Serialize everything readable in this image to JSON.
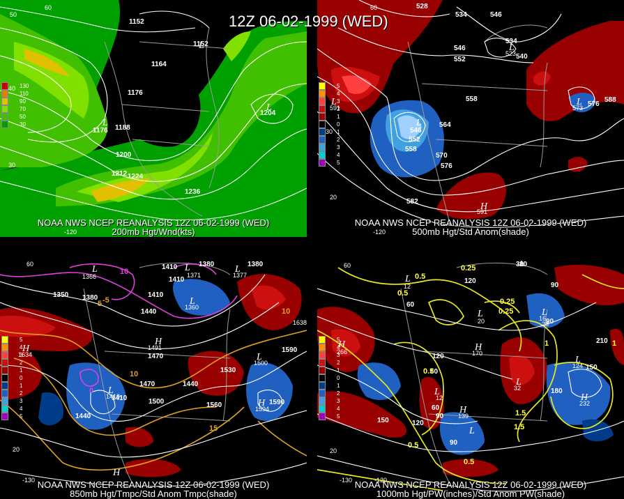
{
  "title": "12Z 06-02-1999 (WED)",
  "panels": [
    {
      "caption_line1": "NOAA NWS NCEP REANALYSIS 12Z 06-02-1999 (WED)",
      "caption_line2": "200mb Hgt/Wnd(kts)",
      "legend": [
        "130",
        "110",
        "90",
        "70",
        "50",
        "30"
      ],
      "legend_colors": [
        "#cc0000",
        "#e08000",
        "#e0c000",
        "#80e000",
        "#40c000",
        "#00a000"
      ],
      "contour_labels": [
        "1152",
        "1152",
        "1164",
        "1176",
        "1188",
        "1176",
        "1200",
        "1212",
        "1224",
        "1236",
        "1204"
      ],
      "extrema": [
        "L",
        "L",
        "L"
      ],
      "lat_lon": [
        "50",
        "60",
        "40",
        "30",
        "-120"
      ]
    },
    {
      "caption_line1": "NOAA NWS NCEP REANALYSIS 12Z 06-02-1999 (WED)",
      "caption_line2": "500mb Hgt/Std Anom(shade)",
      "legend": [
        "5",
        "4",
        "3",
        "2",
        "1",
        "0",
        "1",
        "2",
        "3",
        "4",
        "5"
      ],
      "legend_colors": [
        "#ffff00",
        "#ff9000",
        "#ff4040",
        "#cc1010",
        "#990000",
        "#000000",
        "#003c8a",
        "#2060c0",
        "#40a0e0",
        "#00d0d0",
        "#a000c0"
      ],
      "contour_labels": [
        "528",
        "534",
        "546",
        "534",
        "540",
        "546",
        "552",
        "558",
        "564",
        "570",
        "576",
        "582",
        "588",
        "576",
        "546",
        "552",
        "558"
      ],
      "extrema": [
        "L",
        "L",
        "L",
        "H",
        "L"
      ],
      "extrema_values": [
        "523",
        "573",
        "591",
        "594"
      ],
      "lat_lon": [
        "60",
        "30",
        "20",
        "-120"
      ]
    },
    {
      "caption_line1": "NOAA NWS NCEP REANALYSIS 12Z 06-02-1999 (WED)",
      "caption_line2": "850mb Hgt/Tmpc/Std Anom Tmpc(shade)",
      "legend": [
        "5",
        "4",
        "3",
        "2",
        "1",
        "0",
        "1",
        "2",
        "3",
        "4",
        "5"
      ],
      "legend_colors": [
        "#ffff00",
        "#ff9000",
        "#ff4040",
        "#cc1010",
        "#990000",
        "#000000",
        "#003c8a",
        "#2060c0",
        "#40a0e0",
        "#00d0d0",
        "#a000c0"
      ],
      "contour_labels": [
        "1380",
        "1380",
        "1410",
        "1410",
        "1350",
        "1380",
        "1440",
        "1410",
        "1470",
        "1470",
        "1500",
        "1530",
        "1560",
        "1590",
        "1590",
        "1440",
        "1410",
        "1440"
      ],
      "temp_labels": [
        "10",
        "-5",
        "5",
        "0",
        "10",
        "15",
        "10"
      ],
      "extrema": [
        "L",
        "L",
        "L",
        "L",
        "H",
        "H",
        "L",
        "L",
        "H",
        "H"
      ],
      "extrema_values": [
        "1366",
        "1371",
        "1360",
        "1377",
        "1634",
        "1491",
        "1419",
        "1500",
        "1594",
        "1638"
      ],
      "lat_lon": [
        "60",
        "20",
        "-130"
      ]
    },
    {
      "caption_line1": "NOAA NWS NCEP REANALYSIS 12Z 06-02-1999 (WED)",
      "caption_line2": "1000mb Hgt/PW(inches)/Std Anom PW(shade)",
      "legend": [
        "5",
        "4",
        "3",
        "2",
        "1",
        "0",
        "1",
        "2",
        "3",
        "4",
        "5"
      ],
      "legend_colors": [
        "#ffff00",
        "#ff9000",
        "#ff4040",
        "#cc1010",
        "#990000",
        "#000000",
        "#003c8a",
        "#2060c0",
        "#40a0e0",
        "#00d0d0",
        "#a000c0"
      ],
      "contour_labels": [
        "30",
        "90",
        "120",
        "60",
        "0.5",
        "0.25",
        "0.25",
        "0.5",
        "0.25",
        "30",
        "60",
        "120",
        "90",
        "150",
        "180",
        "210",
        "120",
        "150",
        "1",
        "1.5",
        "0.5",
        "1",
        "0.5",
        "60",
        "90",
        "90",
        "1.5",
        "0.5"
      ],
      "extrema": [
        "L",
        "L",
        "L",
        "H",
        "H",
        "L",
        "L",
        "L",
        "L",
        "H",
        "H",
        "L",
        "H"
      ],
      "extrema_values": [
        "12",
        "20",
        "16",
        "266",
        "170",
        "124",
        "139",
        "32",
        "25",
        "232",
        "12"
      ],
      "lat_lon": [
        "60",
        "20",
        "-130",
        "-120"
      ]
    }
  ]
}
